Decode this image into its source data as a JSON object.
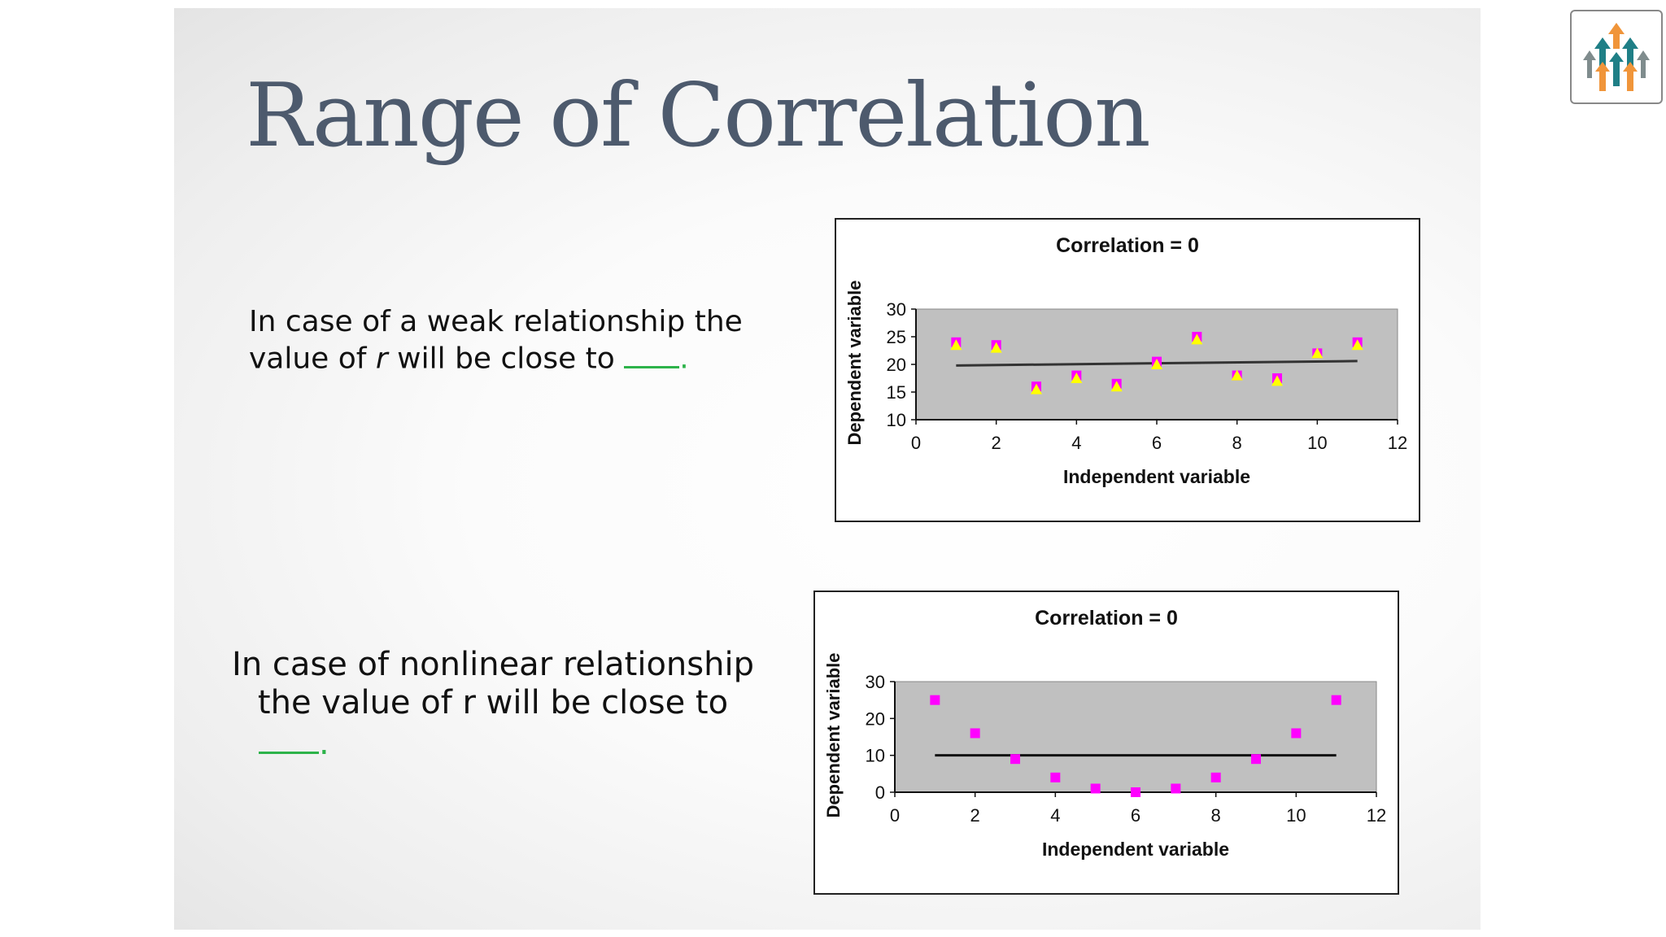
{
  "slide": {
    "title": "Range of Correlation",
    "text1": {
      "before": "In case of a weak relationship the",
      "line2_pre": "value of ",
      "italic": "r",
      "line2_post": " will be close to ",
      "end": "."
    },
    "text2": {
      "line1": "In case of nonlinear relationship",
      "line2": "the value of r will be close to",
      "end": "."
    }
  },
  "logo": {
    "icon": "arrows-up-logo-icon"
  },
  "chart_data": [
    {
      "type": "scatter",
      "title": "Correlation = 0",
      "xlabel": "Independent variable",
      "ylabel": "Dependent variable",
      "xlim": [
        0,
        12
      ],
      "ylim": [
        10,
        30
      ],
      "xticks": [
        0,
        2,
        4,
        6,
        8,
        10,
        12
      ],
      "yticks": [
        10,
        15,
        20,
        25,
        30
      ],
      "series": [
        {
          "x": [
            1,
            2,
            3,
            4,
            5,
            6,
            7,
            8,
            9,
            10,
            11
          ],
          "y": [
            24,
            23.5,
            16,
            18,
            16.5,
            20.5,
            25,
            18,
            17.5,
            22,
            24
          ],
          "color": "#ff00ff",
          "marker": "square"
        },
        {
          "x": [
            1,
            2,
            3,
            4,
            5,
            6,
            7,
            8,
            9,
            10,
            11
          ],
          "y": [
            23.5,
            23,
            15.5,
            17.5,
            16,
            20,
            24.5,
            18,
            17,
            22,
            23.5
          ],
          "color": "#ffff00",
          "marker": "triangle"
        }
      ],
      "trendline": {
        "x": [
          1,
          11
        ],
        "y": [
          19.8,
          20.6
        ],
        "color": "#333333"
      },
      "plot_bg": "#c0c0c0"
    },
    {
      "type": "scatter",
      "title": "Correlation = 0",
      "xlabel": "Independent variable",
      "ylabel": "Dependent variable",
      "xlim": [
        0,
        12
      ],
      "ylim": [
        0,
        30
      ],
      "xticks": [
        0,
        2,
        4,
        6,
        8,
        10,
        12
      ],
      "yticks": [
        0,
        10,
        20,
        30
      ],
      "series": [
        {
          "x": [
            1,
            2,
            3,
            4,
            5,
            6,
            7,
            8,
            9,
            10,
            11
          ],
          "y": [
            25,
            16,
            9,
            4,
            1,
            0,
            1,
            4,
            9,
            16,
            25
          ],
          "color": "#ff00ff",
          "marker": "square"
        }
      ],
      "trendline": {
        "x": [
          1,
          11
        ],
        "y": [
          10,
          10
        ],
        "color": "#111111"
      },
      "plot_bg": "#c0c0c0"
    }
  ]
}
